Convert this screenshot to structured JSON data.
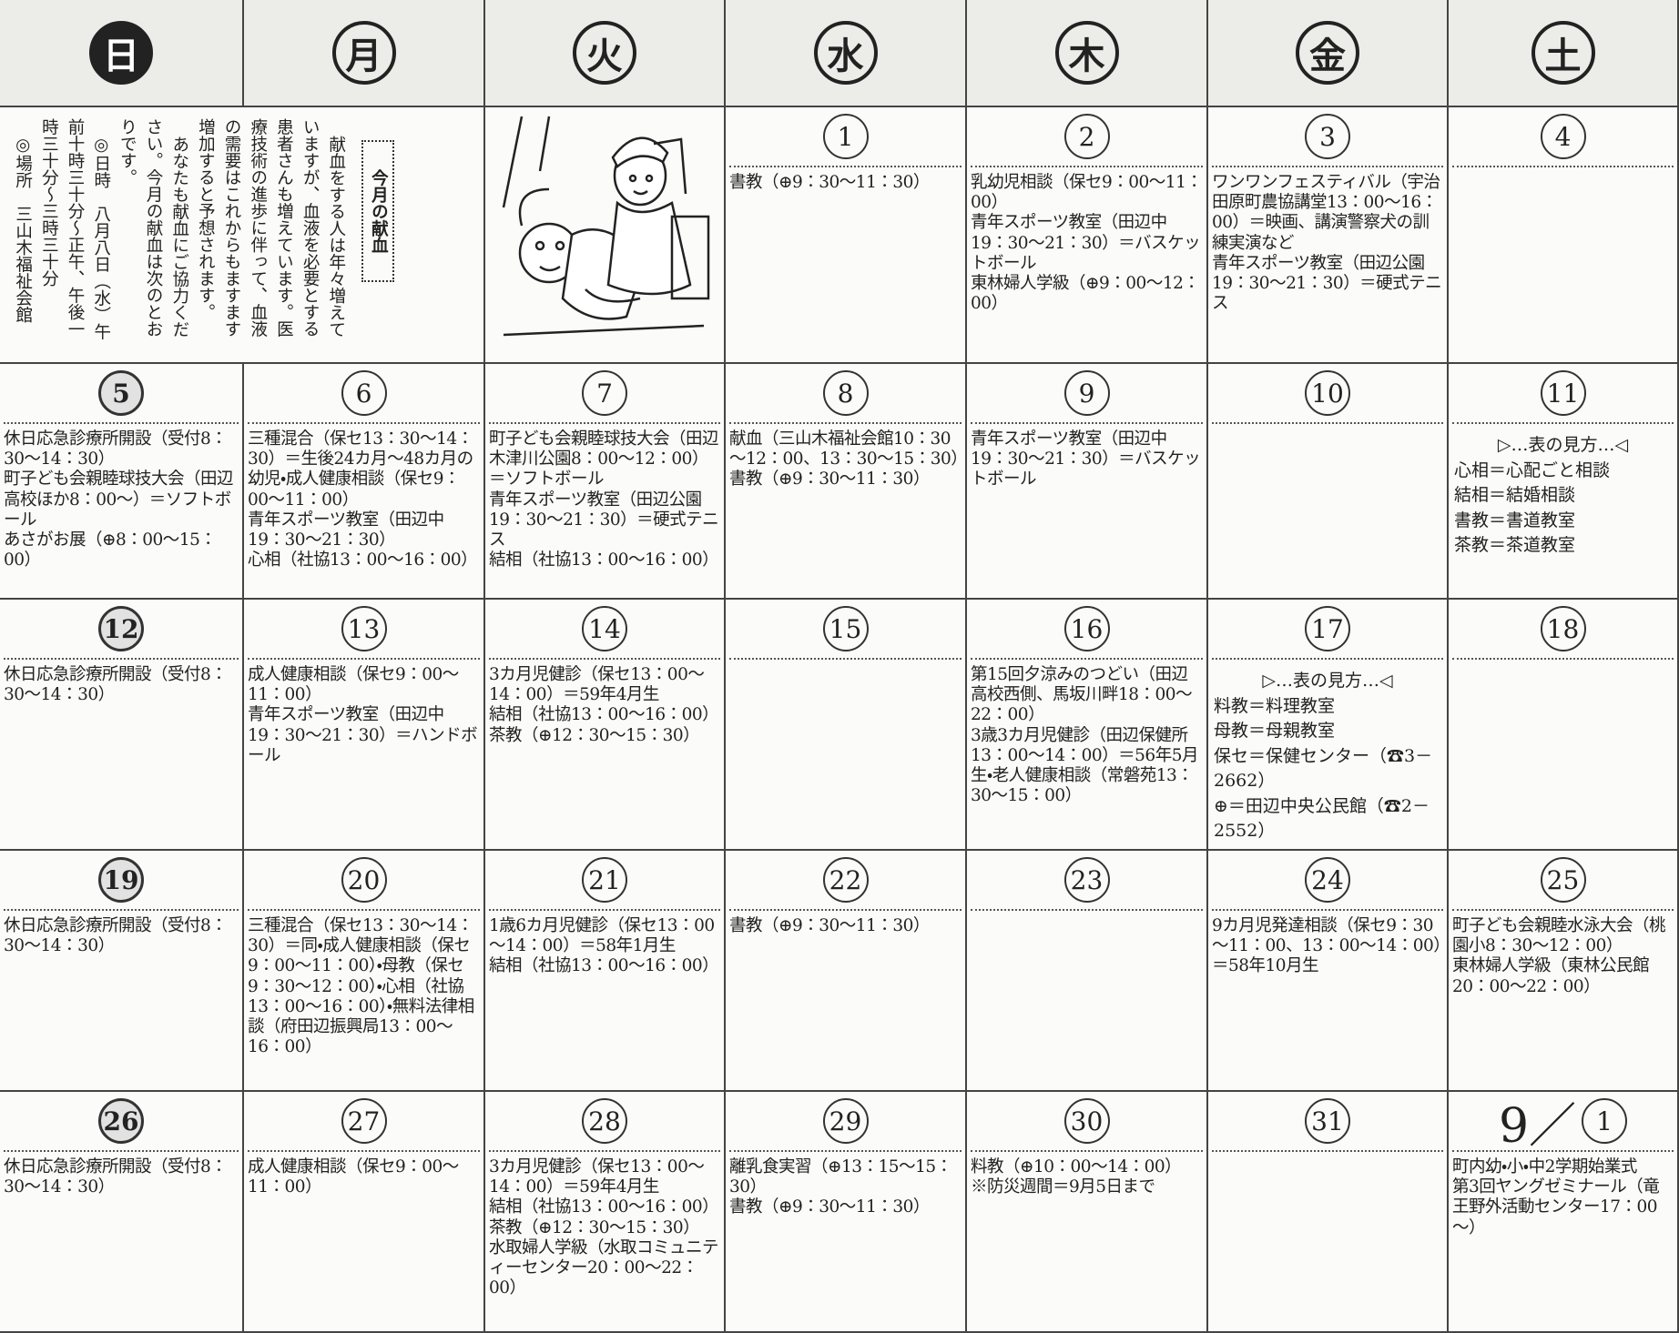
{
  "weekdays": [
    "日",
    "月",
    "火",
    "水",
    "木",
    "金",
    "土"
  ],
  "article": {
    "title": "今月の献血",
    "paragraphs": [
      "献血をする人は年々増えていますが、血液を必要とする患者さんも増えています。医療技術の進歩に伴って、血液の需要はこれからもますます増加すると予想されます。",
      "あなたも献血にご協力ください。今月の献血は次のとおりです。",
      "◎日時　八月八日（水）午前十時三十分～正午、午後一時三十分～三時三十分",
      "◎場所　三山木福祉会館"
    ]
  },
  "weeks": [
    [
      {
        "day": "1",
        "events": [
          "書教（⊕9：30～11：30）"
        ]
      },
      {
        "day": "2",
        "events": [
          "乳幼児相談（保セ9：00～11：00）",
          "青年スポーツ教室（田辺中19：30～21：30）＝バスケットボール",
          "東林婦人学級（⊕9：00～12：00）"
        ]
      },
      {
        "day": "3",
        "events": [
          "ワンワンフェスティバル（宇治田原町農協講堂13：00～16：00）＝映画、講演警察犬の訓練実演など",
          "青年スポーツ教室（田辺公園19：30～21：30）＝硬式テニス"
        ]
      },
      {
        "day": "4",
        "events": []
      }
    ],
    [
      {
        "day": "5",
        "events": [
          "休日応急診療所開設（受付8：30～14：30）",
          "町子ども会親睦球技大会（田辺高校ほか8：00～）＝ソフトボール",
          "あさがお展（⊕8：00～15：00）"
        ]
      },
      {
        "day": "6",
        "events": [
          "三種混合（保セ13：30～14：30）＝生後24カ月～48カ月の幼児・成人健康相談（保セ9：00～11：00）",
          "青年スポーツ教室（田辺中19：30～21：30）",
          "心相（社協13：00～16：00）"
        ]
      },
      {
        "day": "7",
        "events": [
          "町子ども会親睦球技大会（田辺木津川公園8：00～12：00）＝ソフトボール",
          "青年スポーツ教室（田辺公園19：30～21：30）＝硬式テニス",
          "結相（社協13：00～16：00）"
        ]
      },
      {
        "day": "8",
        "events": [
          "献血（三山木福祉会館10：30～12：00、13：30～15：30）",
          "書教（⊕9：30～11：30）"
        ]
      },
      {
        "day": "9",
        "events": [
          "青年スポーツ教室（田辺中19：30～21：30）＝バスケットボール"
        ]
      },
      {
        "day": "10",
        "events": []
      },
      {
        "day": "11",
        "legend": {
          "title": "▷…表の見方…◁",
          "items": [
            "心相＝心配ごと相談",
            "結相＝結婚相談",
            "書教＝書道教室",
            "茶教＝茶道教室"
          ]
        }
      }
    ],
    [
      {
        "day": "12",
        "events": [
          "休日応急診療所開設（受付8：30～14：30）"
        ]
      },
      {
        "day": "13",
        "events": [
          "成人健康相談（保セ9：00～11：00）",
          "青年スポーツ教室（田辺中19：30～21：30）＝ハンドボール"
        ]
      },
      {
        "day": "14",
        "events": [
          "3カ月児健診（保セ13：00～14：00）＝59年4月生",
          "結相（社協13：00～16：00）",
          "茶教（⊕12：30～15：30）"
        ]
      },
      {
        "day": "15",
        "events": []
      },
      {
        "day": "16",
        "events": [
          "第15回夕涼みのつどい（田辺高校西側、馬坂川畔18：00～22：00）",
          "3歳3カ月児健診（田辺保健所13：00～14：00）＝56年5月生・老人健康相談（常磐苑13：30～15：00）"
        ]
      },
      {
        "day": "17",
        "legend": {
          "title": "▷…表の見方…◁",
          "items": [
            "料教＝料理教室",
            "母教＝母親教室",
            "保セ＝保健センター（☎3－2662）",
            "⊕＝田辺中央公民館（☎2－2552）"
          ]
        }
      },
      {
        "day": "18",
        "events": []
      }
    ],
    [
      {
        "day": "19",
        "events": [
          "休日応急診療所開設（受付8：30～14：30）"
        ]
      },
      {
        "day": "20",
        "events": [
          "三種混合（保セ13：30～14：30）＝同・成人健康相談（保セ9：00～11：00）・母教（保セ9：30～12：00）・心相（社協13：00～16：00）・無料法律相談（府田辺振興局13：00～16：00）"
        ]
      },
      {
        "day": "21",
        "events": [
          "1歳6カ月児健診（保セ13：00～14：00）＝58年1月生",
          "結相（社協13：00～16：00）"
        ]
      },
      {
        "day": "22",
        "events": [
          "書教（⊕9：30～11：30）"
        ]
      },
      {
        "day": "23",
        "events": []
      },
      {
        "day": "24",
        "events": [
          "9カ月児発達相談（保セ9：30～11：00、13：00～14：00）＝58年10月生"
        ]
      },
      {
        "day": "25",
        "events": [
          "町子ども会親睦水泳大会（桃園小8：30～12：00）",
          "東林婦人学級（東林公民館20：00～22：00）"
        ]
      }
    ],
    [
      {
        "day": "26",
        "events": [
          "休日応急診療所開設（受付8：30～14：30）"
        ]
      },
      {
        "day": "27",
        "events": [
          "成人健康相談（保セ9：00～11：00）"
        ]
      },
      {
        "day": "28",
        "events": [
          "3カ月児健診（保セ13：00～14：00）＝59年4月生",
          "結相（社協13：00～16：00）",
          "茶教（⊕12：30～15：30）",
          "水取婦人学級（水取コミュニティーセンター20：00～22：00）"
        ]
      },
      {
        "day": "29",
        "events": [
          "離乳食実習（⊕13：15～15：30）",
          "書教（⊕9：30～11：30）"
        ]
      },
      {
        "day": "30",
        "events": [
          "料教（⊕10：00～14：00）",
          "※防災週間＝9月5日まで"
        ]
      },
      {
        "day": "31",
        "events": []
      },
      {
        "month": "9／",
        "day": "1",
        "events": [
          "町内幼・小・中2学期始業式",
          "第3回ヤングゼミナール（竜王野外活動センター17：00～）"
        ]
      }
    ]
  ]
}
